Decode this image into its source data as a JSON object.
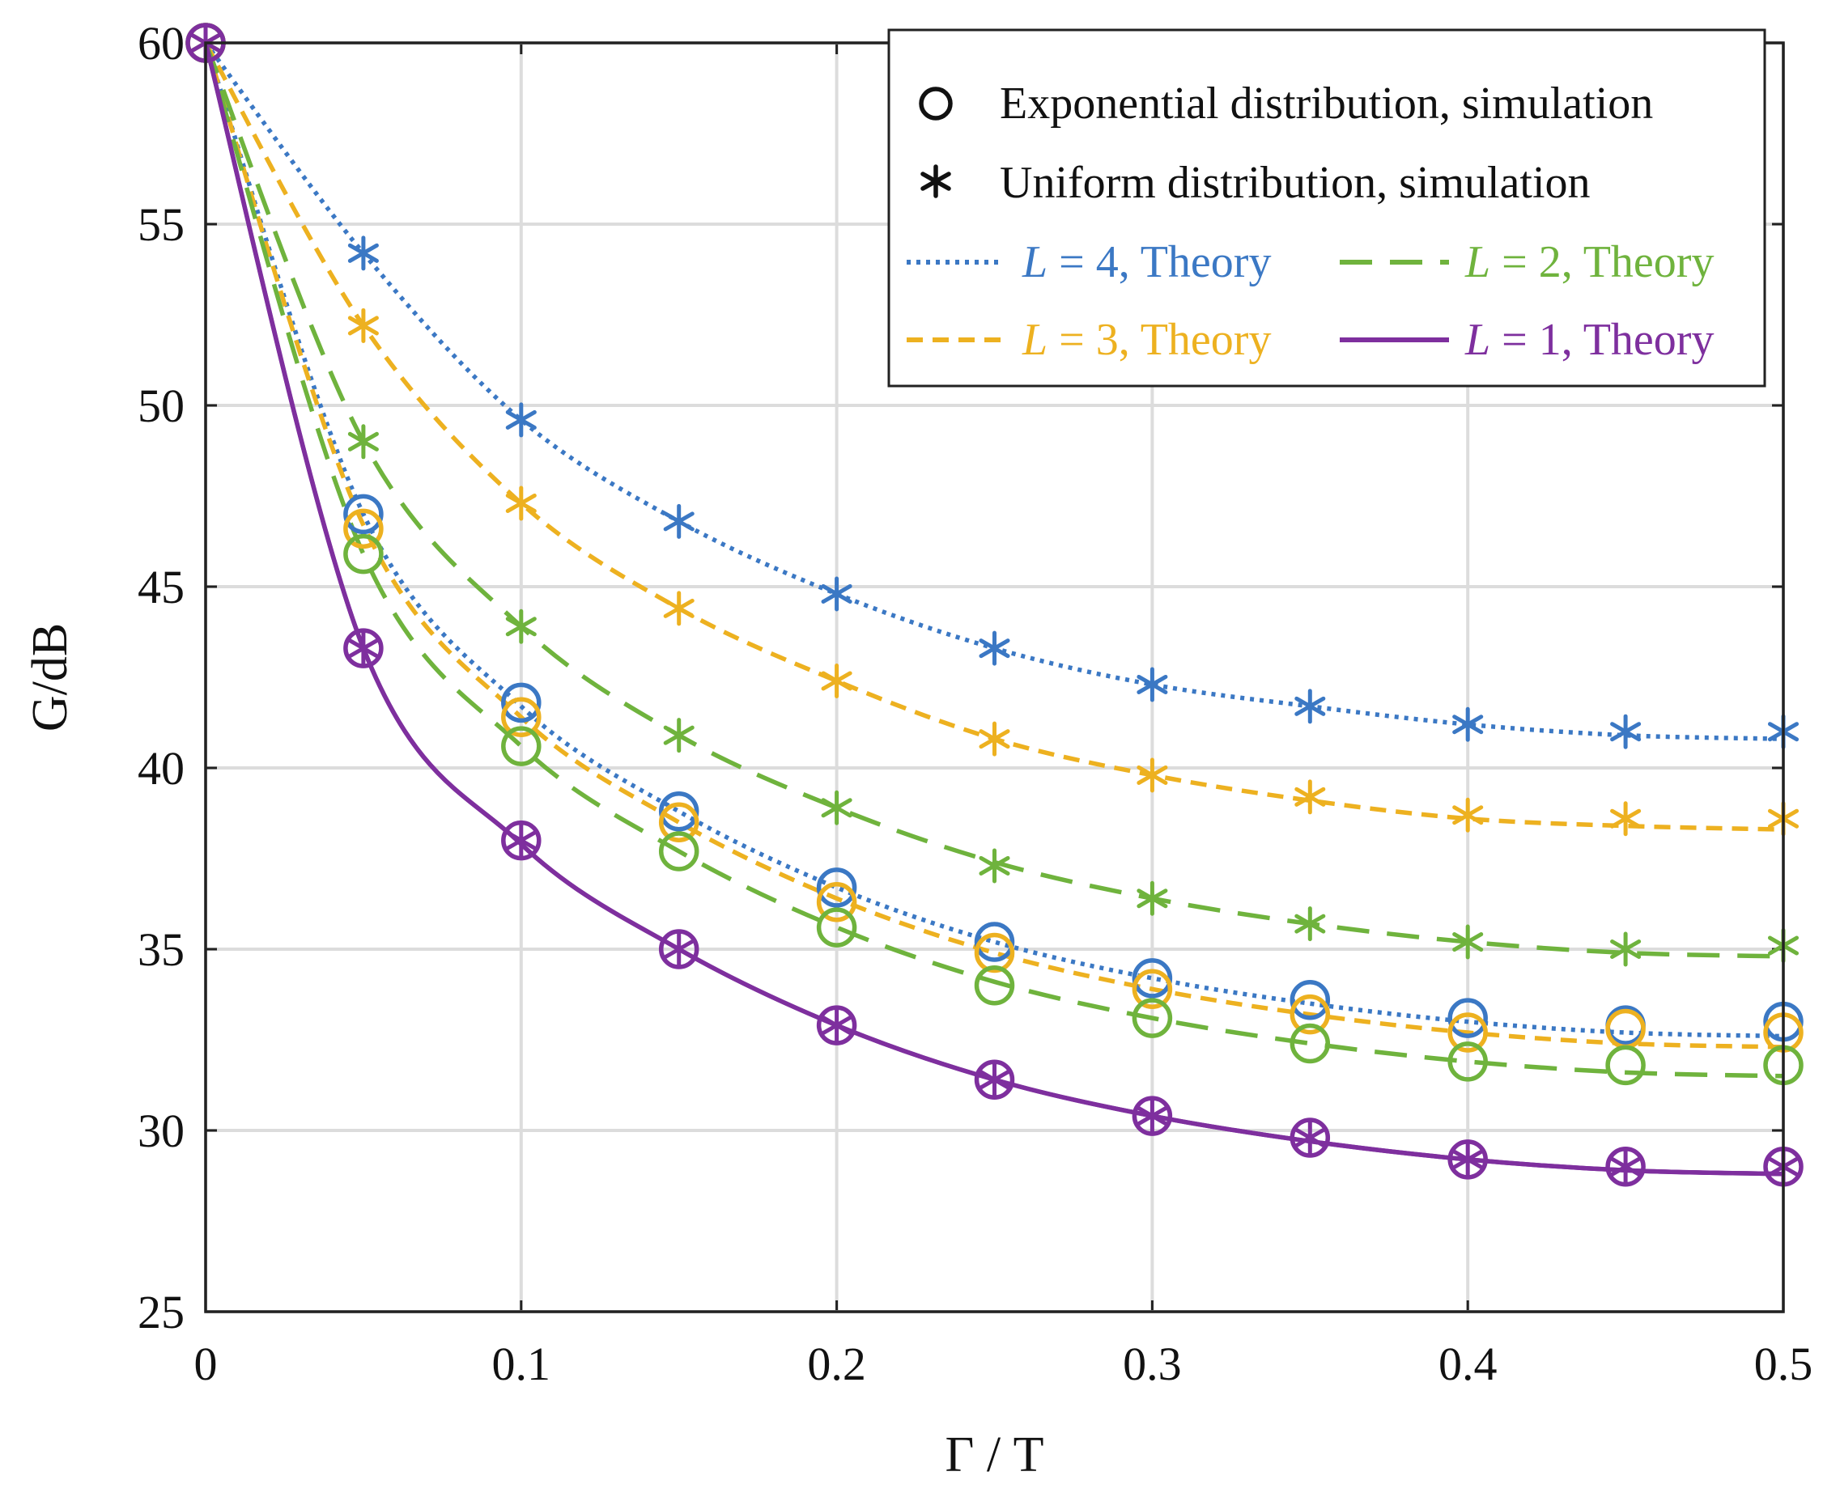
{
  "chart_data": {
    "type": "line",
    "title": "",
    "xlabel": "Γ / T",
    "ylabel": "G/dB",
    "xlim": [
      0,
      0.5
    ],
    "ylim": [
      25,
      60
    ],
    "xticks": [
      "0",
      "0.1",
      "0.2",
      "0.3",
      "0.4",
      "0.5"
    ],
    "xtick_values": [
      0,
      0.1,
      0.2,
      0.3,
      0.4,
      0.5
    ],
    "yticks": [
      "25",
      "30",
      "35",
      "40",
      "45",
      "50",
      "55",
      "60"
    ],
    "ytick_values": [
      25,
      30,
      35,
      40,
      45,
      50,
      55,
      60
    ],
    "grid": true,
    "legend_position": "top-right",
    "legend": {
      "exp_label": "Exponential distribution, simulation",
      "uni_label": "Uniform distribution, simulation",
      "l4_text": "= 4, Theory",
      "l3_text": "= 3, Theory",
      "l2_text": "= 2, Theory",
      "l1_text": "= 1, Theory",
      "l_symbol": "L"
    },
    "x": [
      0,
      0.05,
      0.1,
      0.15,
      0.2,
      0.25,
      0.3,
      0.35,
      0.4,
      0.45,
      0.5
    ],
    "series": [
      {
        "key": "l4",
        "name": "L = 4, Theory",
        "color": "#3b78c4",
        "dash": "dotted",
        "theory_uniform": [
          60,
          54.2,
          49.6,
          46.8,
          44.8,
          43.3,
          42.3,
          41.7,
          41.2,
          40.9,
          40.8
        ],
        "theory_exponential": [
          60,
          47.0,
          41.7,
          38.8,
          36.7,
          35.2,
          34.2,
          33.5,
          33.0,
          32.7,
          32.6
        ],
        "sim_uniform": [
          60,
          54.2,
          49.6,
          46.8,
          44.8,
          43.3,
          42.3,
          41.7,
          41.2,
          41.0,
          41.0
        ],
        "sim_exponential": [
          60,
          47.0,
          41.8,
          38.8,
          36.7,
          35.2,
          34.2,
          33.6,
          33.1,
          32.9,
          33.0
        ]
      },
      {
        "key": "l3",
        "name": "L = 3, Theory",
        "color": "#edb120",
        "dash": "short-dash",
        "theory_uniform": [
          60,
          52.2,
          47.3,
          44.4,
          42.4,
          40.8,
          39.8,
          39.1,
          38.6,
          38.4,
          38.3
        ],
        "theory_exponential": [
          60,
          46.7,
          41.4,
          38.5,
          36.4,
          34.9,
          33.9,
          33.2,
          32.7,
          32.4,
          32.3
        ],
        "sim_uniform": [
          60,
          52.2,
          47.3,
          44.4,
          42.4,
          40.8,
          39.8,
          39.2,
          38.7,
          38.6,
          38.6
        ],
        "sim_exponential": [
          60,
          46.6,
          41.4,
          38.5,
          36.3,
          34.9,
          33.9,
          33.2,
          32.7,
          32.8,
          32.7
        ]
      },
      {
        "key": "l2",
        "name": "L = 2, Theory",
        "color": "#6fb33d",
        "dash": "long-dash",
        "theory_uniform": [
          60,
          49.0,
          43.9,
          40.9,
          38.9,
          37.4,
          36.4,
          35.7,
          35.2,
          34.9,
          34.8
        ],
        "theory_exponential": [
          60,
          45.9,
          40.6,
          37.7,
          35.6,
          34.1,
          33.1,
          32.4,
          31.9,
          31.6,
          31.5
        ],
        "sim_uniform": [
          60,
          49.0,
          43.9,
          40.9,
          38.9,
          37.3,
          36.4,
          35.7,
          35.2,
          35.0,
          35.1
        ],
        "sim_exponential": [
          60,
          45.9,
          40.6,
          37.7,
          35.6,
          34.0,
          33.1,
          32.4,
          31.9,
          31.8,
          31.8
        ]
      },
      {
        "key": "l1",
        "name": "L = 1, Theory",
        "color": "#7e2f9e",
        "dash": "solid",
        "theory_uniform": [
          60,
          43.3,
          37.9,
          35.0,
          32.9,
          31.4,
          30.4,
          29.7,
          29.2,
          28.9,
          28.8
        ],
        "theory_exponential": [
          60,
          43.3,
          37.9,
          35.0,
          32.9,
          31.4,
          30.4,
          29.7,
          29.2,
          28.9,
          28.8
        ],
        "sim_uniform": [
          60,
          43.3,
          38.0,
          35.0,
          32.9,
          31.4,
          30.4,
          29.8,
          29.2,
          29.0,
          29.0
        ],
        "sim_exponential": [
          60,
          43.3,
          38.0,
          35.0,
          32.9,
          31.4,
          30.4,
          29.8,
          29.2,
          29.0,
          29.0
        ]
      }
    ]
  }
}
